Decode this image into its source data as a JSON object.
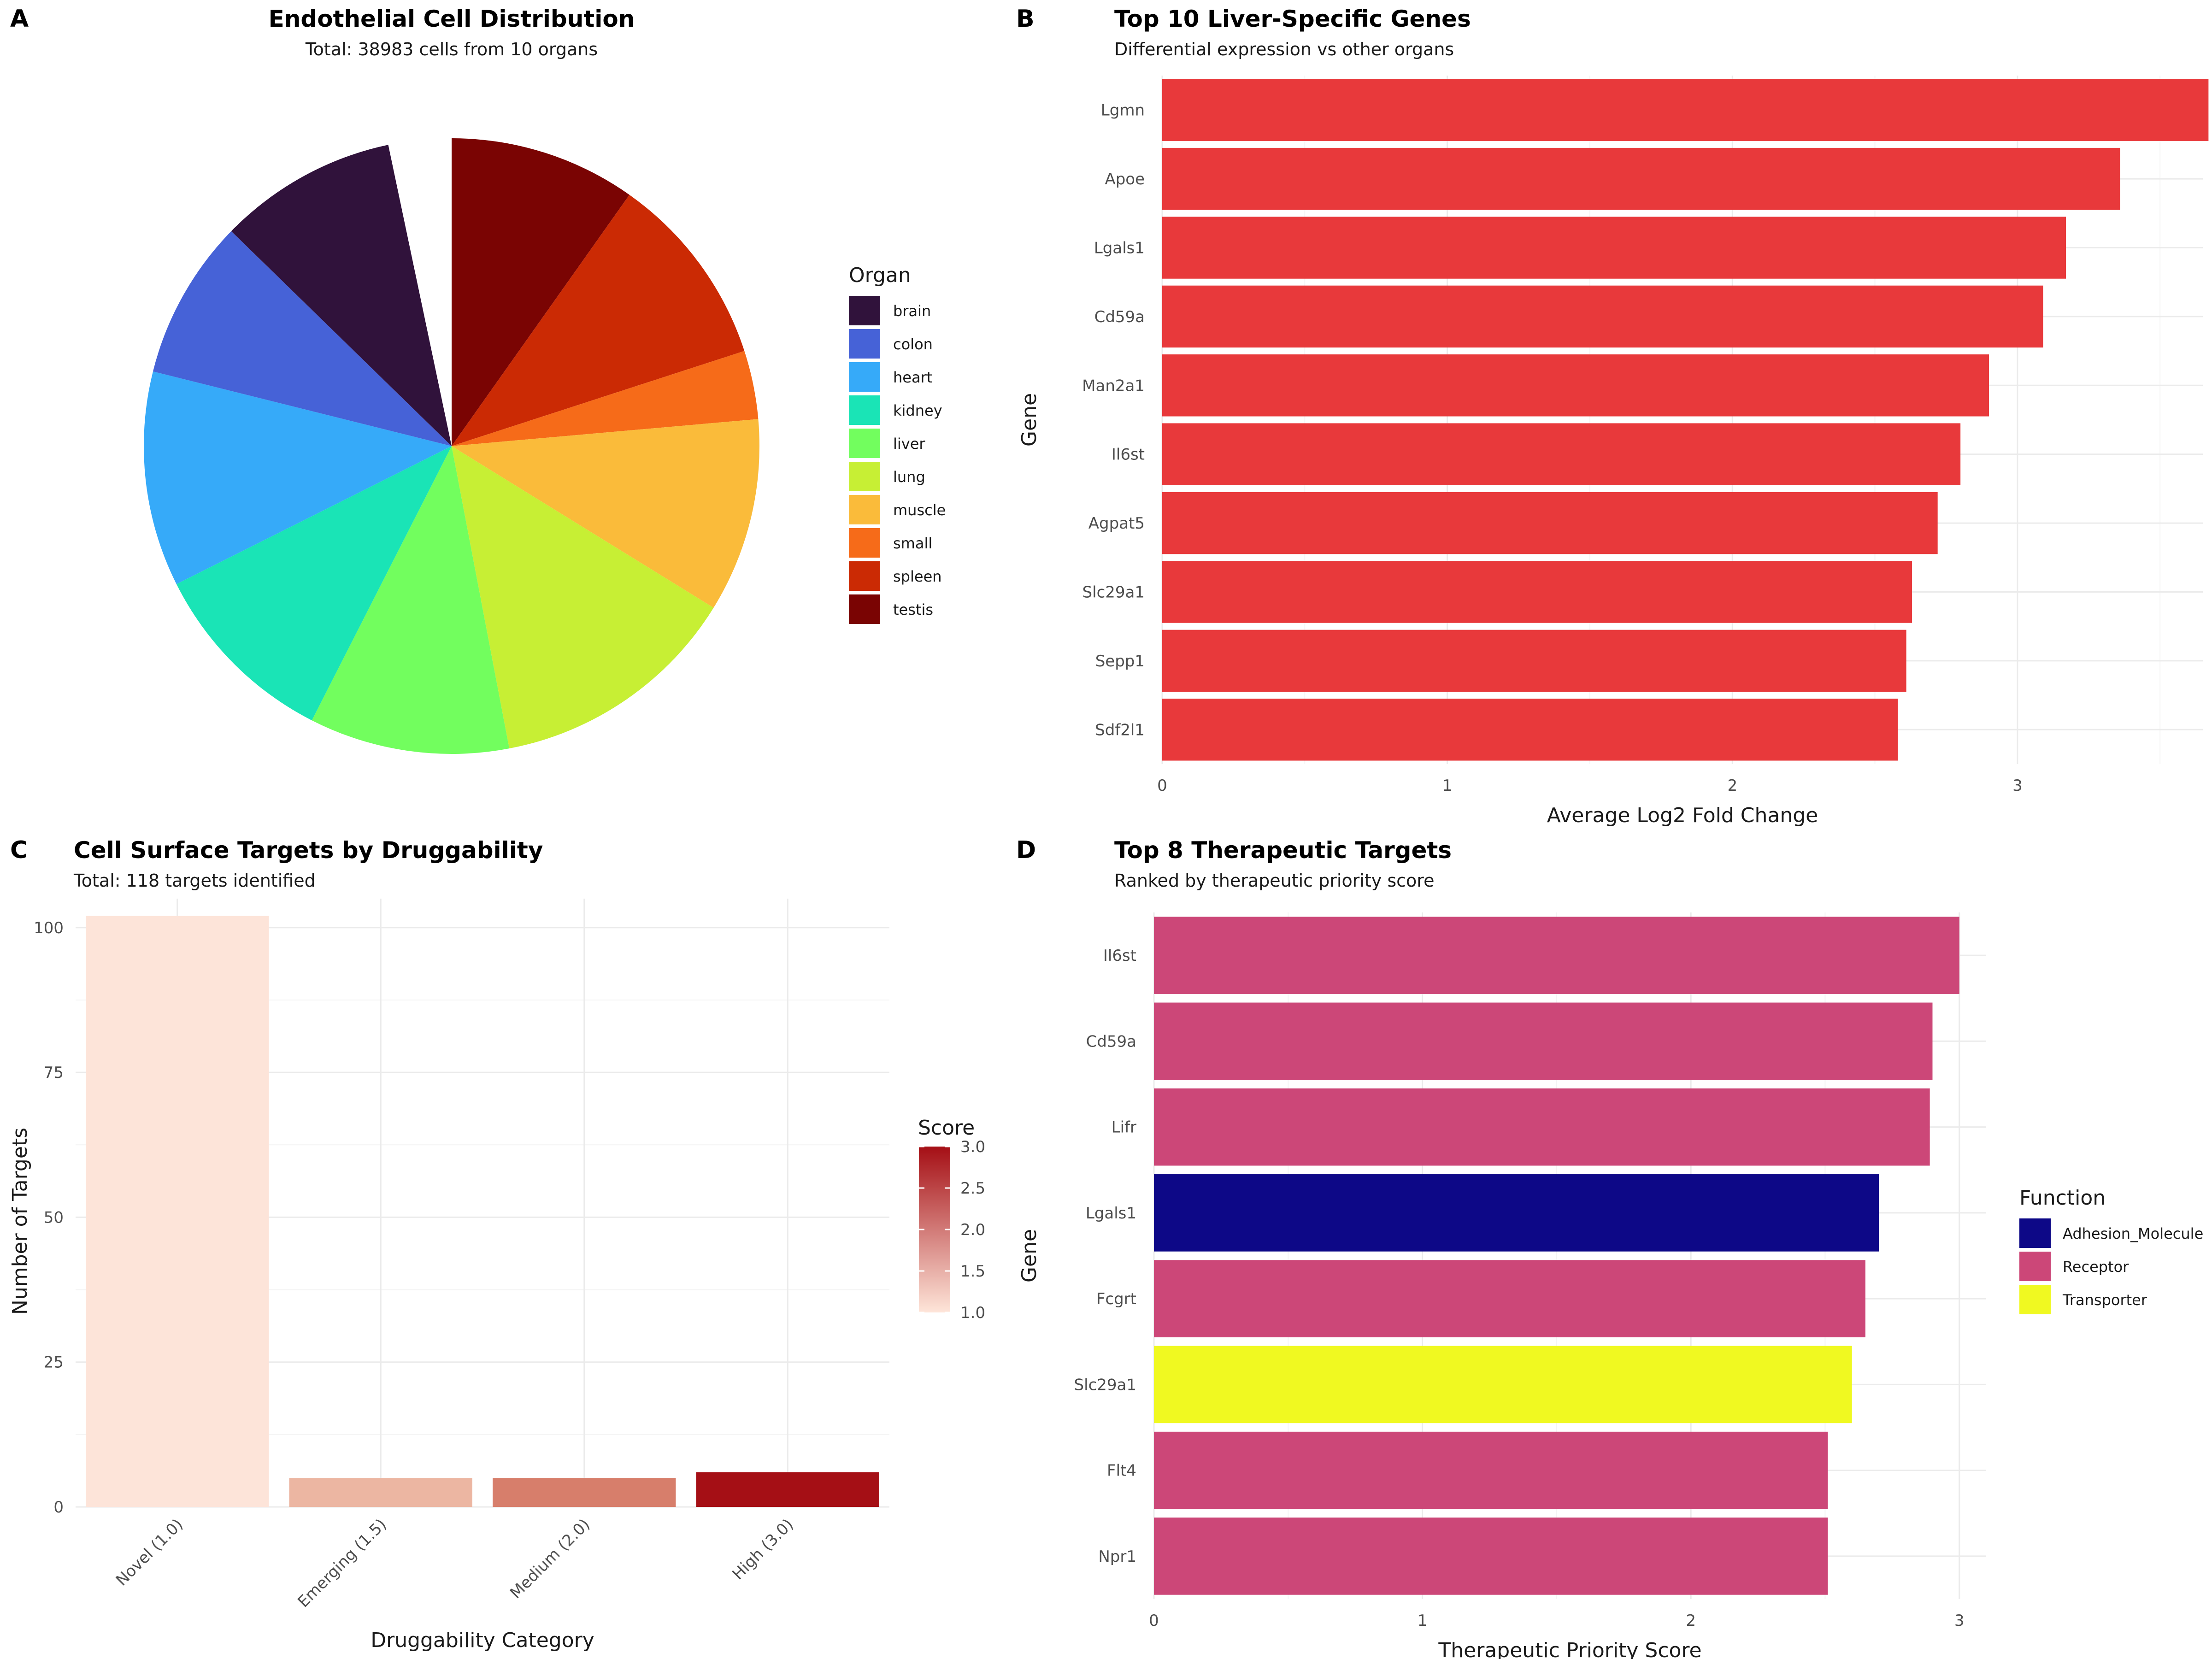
{
  "panels": {
    "A": {
      "tag": "A",
      "title": "Endothelial Cell Distribution",
      "subtitle": "Total: 38983 cells from 10 organs"
    },
    "B": {
      "tag": "B",
      "title": "Top 10 Liver-Specific Genes",
      "subtitle": "Differential expression vs other organs"
    },
    "C": {
      "tag": "C",
      "title": "Cell Surface Targets by Druggability",
      "subtitle": "Total: 118 targets identified"
    },
    "D": {
      "tag": "D",
      "title": "Top 8 Therapeutic Targets",
      "subtitle": "Ranked by therapeutic priority score"
    }
  },
  "chart_data": [
    {
      "panel": "A",
      "type": "pie",
      "title": "Endothelial Cell Distribution",
      "subtitle": "Total: 38983 cells from 10 organs",
      "legend_title": "Organ",
      "legend_position": "right",
      "start": "12 o'clock, clockwise, starting with testis",
      "slices": [
        {
          "label": "testis",
          "fraction": 0.098,
          "color": "#7a0403"
        },
        {
          "label": "spleen",
          "fraction": 0.102,
          "color": "#cb2a04"
        },
        {
          "label": "small",
          "fraction": 0.036,
          "color": "#f66b19"
        },
        {
          "label": "muscle",
          "fraction": 0.102,
          "color": "#fabb3a"
        },
        {
          "label": "lung",
          "fraction": 0.132,
          "color": "#c7ef34"
        },
        {
          "label": "liver",
          "fraction": 0.105,
          "color": "#72fe5e"
        },
        {
          "label": "kidney",
          "fraction": 0.101,
          "color": "#1ae4b6"
        },
        {
          "label": "heart",
          "fraction": 0.113,
          "color": "#36aaf9"
        },
        {
          "label": "colon",
          "fraction": 0.084,
          "color": "#4662d7"
        },
        {
          "label": "brain",
          "fraction": 0.094,
          "color": "#30123b"
        }
      ],
      "legend_order": [
        "brain",
        "colon",
        "heart",
        "kidney",
        "liver",
        "lung",
        "muscle",
        "small",
        "spleen",
        "testis"
      ]
    },
    {
      "panel": "B",
      "type": "bar",
      "orientation": "horizontal",
      "title": "Top 10 Liver-Specific Genes",
      "subtitle": "Differential expression vs other organs",
      "xlabel": "Average Log2 Fold Change",
      "ylabel": "Gene",
      "xlim": [
        0,
        3.65
      ],
      "xticks": [
        0,
        1,
        2,
        3
      ],
      "color": "#e8393b",
      "categories": [
        "Lgmn",
        "Apoe",
        "Lgals1",
        "Cd59a",
        "Man2a1",
        "Il6st",
        "Agpat5",
        "Slc29a1",
        "Sepp1",
        "Sdf2l1"
      ],
      "values": [
        3.67,
        3.36,
        3.17,
        3.09,
        2.9,
        2.8,
        2.72,
        2.63,
        2.61,
        2.58
      ]
    },
    {
      "panel": "C",
      "type": "bar",
      "title": "Cell Surface Targets by Druggability",
      "subtitle": "Total: 118 targets identified",
      "xlabel": "Druggability Category",
      "ylabel": "Number of Targets",
      "ylim": [
        0,
        105
      ],
      "yticks": [
        0,
        25,
        50,
        75,
        100
      ],
      "categories": [
        "Novel (1.0)",
        "Emerging (1.5)",
        "Medium (2.0)",
        "High (3.0)"
      ],
      "values": [
        102,
        5,
        5,
        6
      ],
      "scores": [
        1.0,
        1.5,
        2.0,
        3.0
      ],
      "colors": [
        "#fde4d9",
        "#ecb6a2",
        "#d77e6b",
        "#a50f15"
      ],
      "legend": {
        "title": "Score",
        "ticks": [
          "3.0",
          "2.5",
          "2.0",
          "1.5",
          "1.0"
        ],
        "gradient": [
          "#fee5d9",
          "#a50f15"
        ],
        "position": "right"
      }
    },
    {
      "panel": "D",
      "type": "bar",
      "orientation": "horizontal",
      "title": "Top 8 Therapeutic Targets",
      "subtitle": "Ranked by therapeutic priority score",
      "xlabel": "Therapeutic Priority Score",
      "ylabel": "Gene",
      "xlim": [
        0,
        3.1
      ],
      "xticks": [
        0,
        1,
        2,
        3
      ],
      "categories": [
        "Il6st",
        "Cd59a",
        "Lifr",
        "Lgals1",
        "Fcgrt",
        "Slc29a1",
        "Flt4",
        "Npr1"
      ],
      "values": [
        3.0,
        2.9,
        2.89,
        2.7,
        2.65,
        2.6,
        2.51,
        2.51
      ],
      "functions": [
        "Receptor",
        "Receptor",
        "Receptor",
        "Adhesion_Molecule",
        "Receptor",
        "Transporter",
        "Receptor",
        "Receptor"
      ],
      "legend": {
        "title": "Function",
        "position": "right",
        "items": [
          {
            "label": "Adhesion_Molecule",
            "color": "#0d0887"
          },
          {
            "label": "Receptor",
            "color": "#cc4778"
          },
          {
            "label": "Transporter",
            "color": "#f0f921"
          }
        ]
      }
    }
  ]
}
